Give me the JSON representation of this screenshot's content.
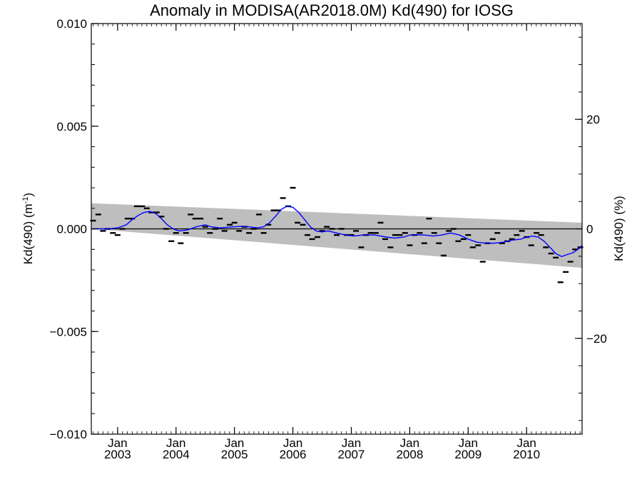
{
  "chart_data": {
    "type": "line",
    "title": "Anomaly in MODISA(AR2018.0M) Kd(490) for IOSG",
    "ylabel": "Kd(490) (m",
    "ylabel_sup": "-1",
    "ylabel_tail": ")",
    "y2label": "Kd(490) (%)",
    "ylim": [
      -0.01,
      0.01
    ],
    "y2lim": [
      -37.5,
      37.5
    ],
    "xlim": [
      2002.55,
      2010.95
    ],
    "yticks": [
      "0.010",
      "0.005",
      "0.000",
      "−0.005",
      "−0.010"
    ],
    "y2ticks": [
      "20",
      "0",
      "−20"
    ],
    "xticks": [
      {
        "top": "Jan",
        "bottom": "2003"
      },
      {
        "top": "Jan",
        "bottom": "2004"
      },
      {
        "top": "Jan",
        "bottom": "2005"
      },
      {
        "top": "Jan",
        "bottom": "2006"
      },
      {
        "top": "Jan",
        "bottom": "2007"
      },
      {
        "top": "Jan",
        "bottom": "2008"
      },
      {
        "top": "Jan",
        "bottom": "2009"
      },
      {
        "top": "Jan",
        "bottom": "2010"
      }
    ],
    "grid": false,
    "colors": {
      "smoothed": "#0000ff",
      "band": "#bebebe",
      "monthly": "#000000",
      "zero_line": "#000000"
    },
    "band": {
      "x": [
        2002.55,
        2010.95
      ],
      "upper": [
        0.00125,
        0.0003
      ],
      "lower": [
        0.0,
        -0.0019
      ]
    },
    "series": [
      {
        "role": "monthly anomaly",
        "marker": "dash",
        "x": [
          2002.58,
          2002.67,
          2002.75,
          2002.83,
          2002.92,
          2003.0,
          2003.08,
          2003.17,
          2003.25,
          2003.33,
          2003.42,
          2003.5,
          2003.58,
          2003.67,
          2003.75,
          2003.83,
          2003.92,
          2004.0,
          2004.08,
          2004.17,
          2004.25,
          2004.33,
          2004.42,
          2004.5,
          2004.58,
          2004.67,
          2004.75,
          2004.83,
          2004.92,
          2005.0,
          2005.08,
          2005.17,
          2005.25,
          2005.33,
          2005.42,
          2005.5,
          2005.58,
          2005.67,
          2005.75,
          2005.83,
          2005.92,
          2006.0,
          2006.08,
          2006.17,
          2006.25,
          2006.33,
          2006.42,
          2006.5,
          2006.58,
          2006.67,
          2006.75,
          2006.83,
          2006.92,
          2007.0,
          2007.08,
          2007.17,
          2007.25,
          2007.33,
          2007.42,
          2007.5,
          2007.58,
          2007.67,
          2007.75,
          2007.83,
          2007.92,
          2008.0,
          2008.08,
          2008.17,
          2008.25,
          2008.33,
          2008.42,
          2008.5,
          2008.58,
          2008.67,
          2008.75,
          2008.83,
          2008.92,
          2009.0,
          2009.08,
          2009.17,
          2009.25,
          2009.33,
          2009.42,
          2009.5,
          2009.58,
          2009.67,
          2009.75,
          2009.83,
          2009.92,
          2010.0,
          2010.08,
          2010.17,
          2010.25,
          2010.33,
          2010.42,
          2010.5,
          2010.58,
          2010.67,
          2010.75,
          2010.83,
          2010.92
        ],
        "y": [
          0.0004,
          0.0007,
          -0.0001,
          0.0,
          -0.0002,
          -0.0003,
          0.0,
          0.0005,
          0.0005,
          0.0011,
          0.0011,
          0.001,
          0.0008,
          0.0008,
          0.0006,
          0.0,
          -0.0006,
          -0.0002,
          -0.0007,
          -0.0002,
          0.0007,
          0.0005,
          0.0005,
          0.0001,
          -0.0002,
          0.0,
          0.0005,
          -0.0001,
          0.0002,
          0.0003,
          -0.0001,
          0.0001,
          -0.0002,
          0.0,
          0.0007,
          -0.0002,
          0.0002,
          0.0009,
          0.0009,
          0.0015,
          0.0011,
          0.002,
          0.0003,
          0.0002,
          -0.0003,
          -0.0005,
          -0.0004,
          -0.0001,
          0.0001,
          0.0,
          -0.0003,
          0.0,
          -0.0003,
          -0.0003,
          -0.0001,
          -0.0009,
          -0.0003,
          -0.0002,
          -0.0002,
          0.0003,
          -0.0005,
          -0.0009,
          -0.0003,
          -0.0003,
          -0.0002,
          -0.0008,
          -0.0003,
          -0.0002,
          -0.0007,
          0.0005,
          -0.0002,
          -0.0007,
          -0.0013,
          -0.0001,
          0.0,
          -0.0006,
          -0.0005,
          -0.0003,
          -0.0009,
          -0.0008,
          -0.0016,
          -0.0007,
          -0.0005,
          -0.0002,
          -0.0007,
          -0.0006,
          -0.0005,
          -0.0003,
          -0.0001,
          -0.0004,
          -0.0008,
          -0.0002,
          -0.0003,
          -0.0009,
          -0.0012,
          -0.0014,
          -0.0026,
          -0.0021,
          -0.0016,
          -0.001,
          -0.0009
        ]
      },
      {
        "role": "smoothed anomaly",
        "x": [
          2002.55,
          2002.7,
          2002.85,
          2003.0,
          2003.15,
          2003.25,
          2003.35,
          2003.45,
          2003.55,
          2003.65,
          2003.75,
          2003.85,
          2003.95,
          2004.05,
          2004.2,
          2004.35,
          2004.5,
          2004.6,
          2004.75,
          2004.9,
          2005.0,
          2005.1,
          2005.2,
          2005.3,
          2005.4,
          2005.5,
          2005.6,
          2005.7,
          2005.8,
          2005.9,
          2006.0,
          2006.1,
          2006.2,
          2006.3,
          2006.4,
          2006.5,
          2006.6,
          2006.75,
          2006.9,
          2007.05,
          2007.2,
          2007.4,
          2007.6,
          2007.75,
          2007.9,
          2008.0,
          2008.1,
          2008.25,
          2008.4,
          2008.55,
          2008.7,
          2008.85,
          2009.0,
          2009.15,
          2009.3,
          2009.45,
          2009.6,
          2009.75,
          2009.9,
          2010.0,
          2010.1,
          2010.2,
          2010.3,
          2010.4,
          2010.5,
          2010.6,
          2010.7,
          2010.8,
          2010.9,
          2010.95
        ],
        "y": [
          0.0,
          0.0,
          0.0,
          5e-05,
          0.0002,
          0.00045,
          0.00065,
          0.0008,
          0.00085,
          0.00075,
          0.0005,
          0.0002,
          0.0,
          -0.0001,
          -5e-05,
          0.0001,
          0.0002,
          0.0001,
          5e-05,
          8e-05,
          0.0001,
          0.00012,
          0.00012,
          8e-05,
          5e-05,
          0.0001,
          0.0003,
          0.0006,
          0.00095,
          0.0011,
          0.00105,
          0.0008,
          0.00045,
          0.0001,
          -0.0001,
          -0.00015,
          -0.0001,
          -0.0002,
          -0.0003,
          -0.00035,
          -0.0003,
          -0.0003,
          -0.0004,
          -0.00045,
          -0.0004,
          -0.0003,
          -0.0003,
          -0.0003,
          -0.00035,
          -0.0003,
          -0.0002,
          -0.0003,
          -0.0005,
          -0.00065,
          -0.0007,
          -0.0007,
          -0.00065,
          -0.00055,
          -0.0005,
          -0.0004,
          -0.00035,
          -0.0004,
          -0.0006,
          -0.0009,
          -0.0012,
          -0.00135,
          -0.00125,
          -0.00115,
          -0.00095,
          -0.0008
        ]
      }
    ]
  }
}
